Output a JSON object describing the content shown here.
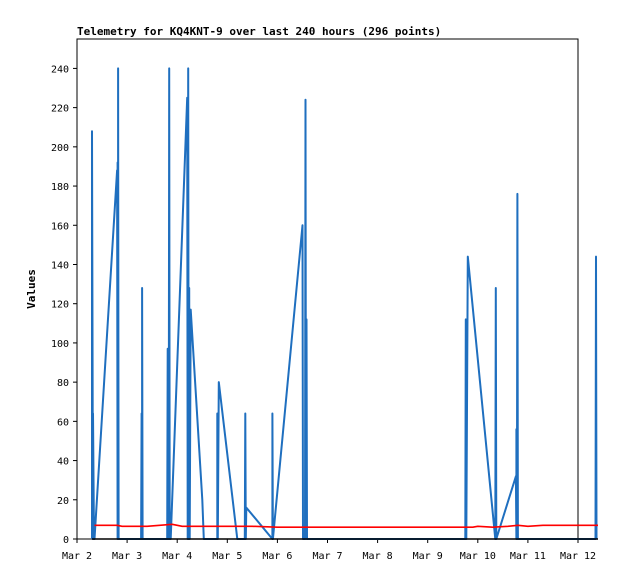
{
  "chart_data": {
    "type": "line",
    "title": "Telemetry for KQ4KNT-9 over last 240 hours (296 points)",
    "xlabel": "",
    "ylabel": "Values",
    "x_ticks": [
      "Mar 2",
      "Mar 3",
      "Mar 4",
      "Mar 5",
      "Mar 6",
      "Mar 7",
      "Mar 8",
      "Mar 9",
      "Mar 10",
      "Mar 11",
      "Mar 12"
    ],
    "xlim": [
      0,
      10
    ],
    "y_ticks": [
      "0",
      "20",
      "40",
      "60",
      "80",
      "100",
      "120",
      "140",
      "160",
      "180",
      "200",
      "220",
      "240"
    ],
    "ylim": [
      0,
      255
    ],
    "grid": false,
    "series": [
      {
        "color": "#1f6fbf",
        "points": [
          [
            0.3,
            0
          ],
          [
            0.3,
            208
          ],
          [
            0.32,
            0
          ],
          [
            0.32,
            64
          ],
          [
            0.34,
            0
          ],
          [
            0.35,
            0
          ],
          [
            0.8,
            188
          ],
          [
            0.81,
            0
          ],
          [
            0.81,
            192
          ],
          [
            0.82,
            0
          ],
          [
            0.82,
            240
          ],
          [
            0.83,
            0
          ],
          [
            1.28,
            0
          ],
          [
            1.29,
            64
          ],
          [
            1.3,
            0
          ],
          [
            1.3,
            128
          ],
          [
            1.31,
            0
          ],
          [
            1.8,
            0
          ],
          [
            1.81,
            97
          ],
          [
            1.82,
            0
          ],
          [
            1.82,
            64
          ],
          [
            1.83,
            0
          ],
          [
            1.84,
            240
          ],
          [
            1.85,
            0
          ],
          [
            1.87,
            0
          ],
          [
            2.2,
            225
          ],
          [
            2.21,
            0
          ],
          [
            2.22,
            240
          ],
          [
            2.23,
            0
          ],
          [
            2.24,
            128
          ],
          [
            2.25,
            0
          ],
          [
            2.27,
            117
          ],
          [
            2.5,
            20
          ],
          [
            2.53,
            0
          ],
          [
            2.8,
            0
          ],
          [
            2.8,
            64
          ],
          [
            2.81,
            0
          ],
          [
            2.83,
            80
          ],
          [
            3.2,
            0
          ],
          [
            3.35,
            0
          ],
          [
            3.36,
            64
          ],
          [
            3.37,
            0
          ],
          [
            3.38,
            16
          ],
          [
            3.9,
            0
          ],
          [
            3.9,
            64
          ],
          [
            3.91,
            0
          ],
          [
            4.5,
            160
          ],
          [
            4.51,
            0
          ],
          [
            4.55,
            0
          ],
          [
            4.56,
            224
          ],
          [
            4.57,
            0
          ],
          [
            4.58,
            112
          ],
          [
            4.59,
            0
          ],
          [
            7.75,
            0
          ],
          [
            7.76,
            112
          ],
          [
            7.77,
            0
          ],
          [
            7.8,
            144
          ],
          [
            8.35,
            0
          ],
          [
            8.36,
            128
          ],
          [
            8.37,
            0
          ],
          [
            8.76,
            32
          ],
          [
            8.77,
            0
          ],
          [
            8.77,
            56
          ],
          [
            8.78,
            0
          ],
          [
            8.79,
            176
          ],
          [
            8.8,
            0
          ],
          [
            8.81,
            0
          ],
          [
            10.35,
            0
          ],
          [
            10.36,
            144
          ],
          [
            10.37,
            0
          ]
        ]
      },
      {
        "color": "#ff0000",
        "points": [
          [
            0.35,
            7
          ],
          [
            0.8,
            7
          ],
          [
            0.9,
            6.5
          ],
          [
            1.4,
            6.5
          ],
          [
            1.9,
            7.5
          ],
          [
            2.1,
            6.5
          ],
          [
            2.5,
            6.5
          ],
          [
            3.0,
            6.5
          ],
          [
            3.5,
            6.5
          ],
          [
            4.0,
            6
          ],
          [
            5.0,
            6
          ],
          [
            6.0,
            6
          ],
          [
            7.0,
            6
          ],
          [
            7.9,
            6
          ],
          [
            8.0,
            6.5
          ],
          [
            8.3,
            6
          ],
          [
            8.6,
            6.5
          ],
          [
            8.8,
            7
          ],
          [
            9.0,
            6.5
          ],
          [
            9.3,
            7
          ],
          [
            9.8,
            7
          ],
          [
            10.4,
            7
          ]
        ]
      },
      {
        "color": "#000000",
        "points": [
          [
            0.3,
            0
          ],
          [
            10.4,
            0
          ]
        ]
      }
    ]
  }
}
